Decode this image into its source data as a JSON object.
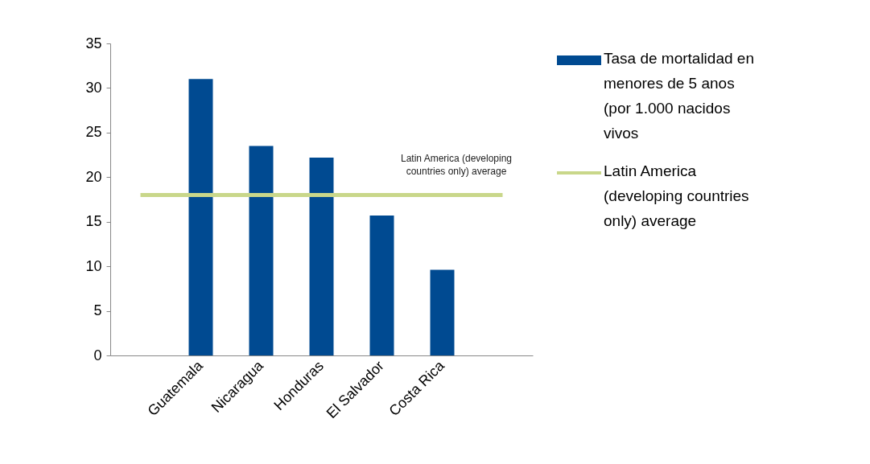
{
  "chart_data": {
    "type": "bar",
    "categories": [
      null,
      "Guatemala",
      "Nicaragua",
      "Honduras",
      "El Salvador",
      "Costa Rica",
      null
    ],
    "series": [
      {
        "name": "Tasa de mortalidad en menores de 5 anos (por 1.000 nacidos vivos",
        "color": "#004a91",
        "values": [
          null,
          31,
          23.5,
          22.2,
          15.7,
          9.6,
          null
        ]
      },
      {
        "type": "line",
        "name": "Latin America (developing countries only) average",
        "color": "#c9d78a",
        "values": [
          18,
          18,
          18,
          18,
          18,
          18,
          18
        ]
      }
    ],
    "annotations": [
      "Latin America (developing countries only) average"
    ],
    "ylim": [
      0,
      35
    ],
    "yticks": [
      0,
      5,
      10,
      15,
      20,
      25,
      30,
      35
    ],
    "grid": false,
    "legend": "right"
  }
}
